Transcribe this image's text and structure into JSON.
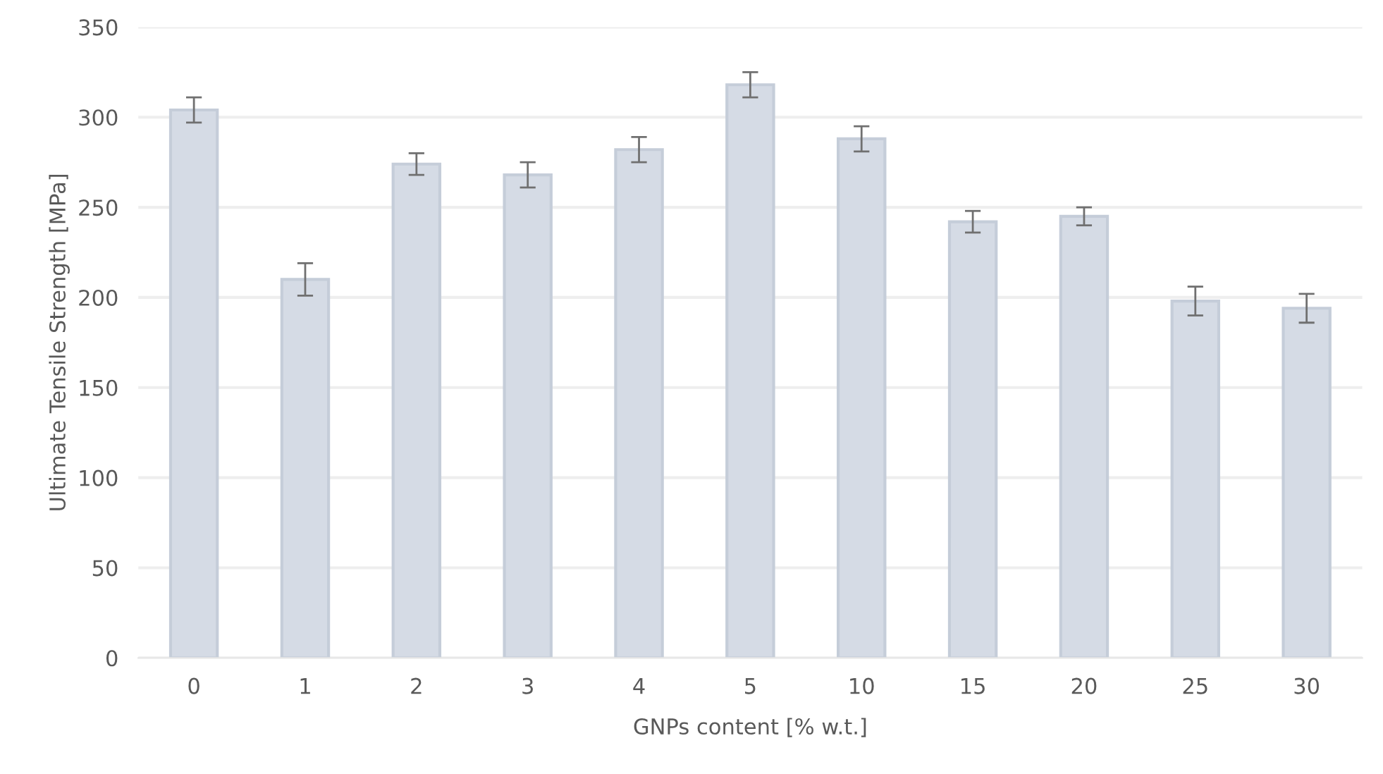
{
  "chart_data": {
    "type": "bar",
    "xlabel": "GNPs content [% w.t.]",
    "ylabel": "Ultimate Tensile Strength [MPa]",
    "categories": [
      "0",
      "1",
      "2",
      "3",
      "4",
      "5",
      "10",
      "15",
      "20",
      "25",
      "30"
    ],
    "values": [
      304,
      210,
      274,
      268,
      282,
      318,
      288,
      242,
      245,
      198,
      194
    ],
    "errors": [
      7,
      9,
      6,
      7,
      7,
      7,
      7,
      6,
      5,
      8,
      8
    ],
    "color": "#d5dbe5",
    "ylim": [
      0,
      350
    ],
    "yticks": [
      0,
      50,
      100,
      150,
      200,
      250,
      300,
      350
    ],
    "grid": "y"
  }
}
